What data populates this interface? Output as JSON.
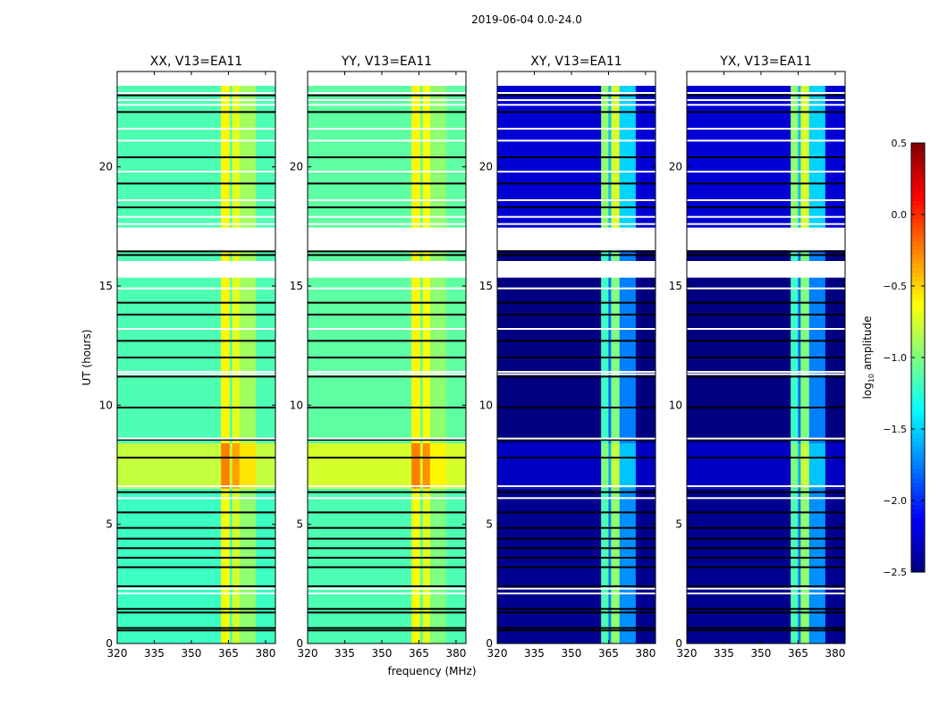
{
  "chart_data": {
    "type": "heatmap",
    "suptitle": "2019-06-04 0.0-24.0",
    "xlabel": "frequency (MHz)",
    "ylabel": "UT (hours)",
    "xlim": [
      320,
      384
    ],
    "ylim": [
      0,
      24
    ],
    "xticks": [
      "320",
      "335",
      "350",
      "365",
      "380"
    ],
    "xtick_values": [
      320,
      335,
      350,
      365,
      380
    ],
    "yticks": [
      "0",
      "5",
      "10",
      "15",
      "20"
    ],
    "ytick_values": [
      0,
      5,
      10,
      15,
      20
    ],
    "colorbar": {
      "label_main": "log",
      "label_sub": "10",
      "label_rest": " amplitude",
      "range": [
        -2.5,
        0.5
      ],
      "ticks": [
        "0.5",
        "0.0",
        "−0.5",
        "−1.0",
        "−1.5",
        "−2.0",
        "−2.5"
      ],
      "tick_values": [
        0.5,
        0.0,
        -0.5,
        -1.0,
        -1.5,
        -2.0,
        -2.5
      ]
    },
    "no_data_hours": [
      [
        23.4,
        24
      ],
      [
        16.5,
        17.45
      ],
      [
        15.35,
        16.05
      ]
    ],
    "flag_lines_hours": [
      0.55,
      0.65,
      1.3,
      1.45,
      2.4,
      3.2,
      3.6,
      4.0,
      4.4,
      4.85,
      5.5,
      6.35,
      7.8,
      8.55,
      9.9,
      11.2,
      12.0,
      12.7,
      13.8,
      14.3,
      16.3,
      16.45,
      18.3,
      19.3,
      20.4,
      22.3,
      23.0
    ],
    "white_lines_hours": [
      2.1,
      2.3,
      6.1,
      6.6,
      8.6,
      11.3,
      11.4,
      13.2,
      14.9,
      17.6,
      17.9,
      18.6,
      19.8,
      21.1,
      21.6,
      22.6,
      22.8,
      23.1
    ],
    "panels": [
      {
        "title": "XX, V13=EA11",
        "kind": "parallel",
        "segments": [
          {
            "t0": 0,
            "t1": 6.5,
            "value": -1.2
          },
          {
            "t0": 6.5,
            "t1": 8.4,
            "value": -0.8
          },
          {
            "t0": 8.4,
            "t1": 24,
            "value": -1.15
          }
        ],
        "bands": [
          {
            "f0": 362,
            "f1": 365.5,
            "delta": 0.55
          },
          {
            "f0": 366.5,
            "f1": 369.5,
            "delta": 0.45
          },
          {
            "f0": 369.5,
            "f1": 376,
            "delta": 0.25
          }
        ]
      },
      {
        "title": "YY, V13=EA11",
        "kind": "parallel",
        "segments": [
          {
            "t0": 0,
            "t1": 6.5,
            "value": -1.15
          },
          {
            "t0": 6.5,
            "t1": 8.4,
            "value": -0.75
          },
          {
            "t0": 8.4,
            "t1": 24,
            "value": -1.1
          }
        ],
        "bands": [
          {
            "f0": 362,
            "f1": 365.5,
            "delta": 0.5
          },
          {
            "f0": 366.5,
            "f1": 369.5,
            "delta": 0.45
          },
          {
            "f0": 369.5,
            "f1": 376,
            "delta": 0.15
          }
        ]
      },
      {
        "title": "XY, V13=EA11",
        "kind": "cross",
        "segments": [
          {
            "t0": 0,
            "t1": 6.5,
            "value": -2.45
          },
          {
            "t0": 6.5,
            "t1": 8.4,
            "value": -2.3
          },
          {
            "t0": 8.4,
            "t1": 16.5,
            "value": -2.5
          },
          {
            "t0": 17.4,
            "t1": 24,
            "value": -2.25
          }
        ],
        "bands": [
          {
            "f0": 362,
            "f1": 365,
            "delta": 1.3
          },
          {
            "f0": 365,
            "f1": 366,
            "delta": 0.7
          },
          {
            "f0": 366,
            "f1": 369.5,
            "delta": 1.5
          },
          {
            "f0": 369.5,
            "f1": 376,
            "delta": 0.75
          }
        ]
      },
      {
        "title": "YX, V13=EA11",
        "kind": "cross",
        "segments": [
          {
            "t0": 0,
            "t1": 6.5,
            "value": -2.45
          },
          {
            "t0": 6.5,
            "t1": 8.4,
            "value": -2.3
          },
          {
            "t0": 8.4,
            "t1": 16.5,
            "value": -2.5
          },
          {
            "t0": 17.4,
            "t1": 24,
            "value": -2.25
          }
        ],
        "bands": [
          {
            "f0": 362,
            "f1": 365,
            "delta": 1.3
          },
          {
            "f0": 365,
            "f1": 366,
            "delta": 0.7
          },
          {
            "f0": 366,
            "f1": 369.5,
            "delta": 1.5
          },
          {
            "f0": 369.5,
            "f1": 376,
            "delta": 0.75
          }
        ]
      }
    ]
  }
}
